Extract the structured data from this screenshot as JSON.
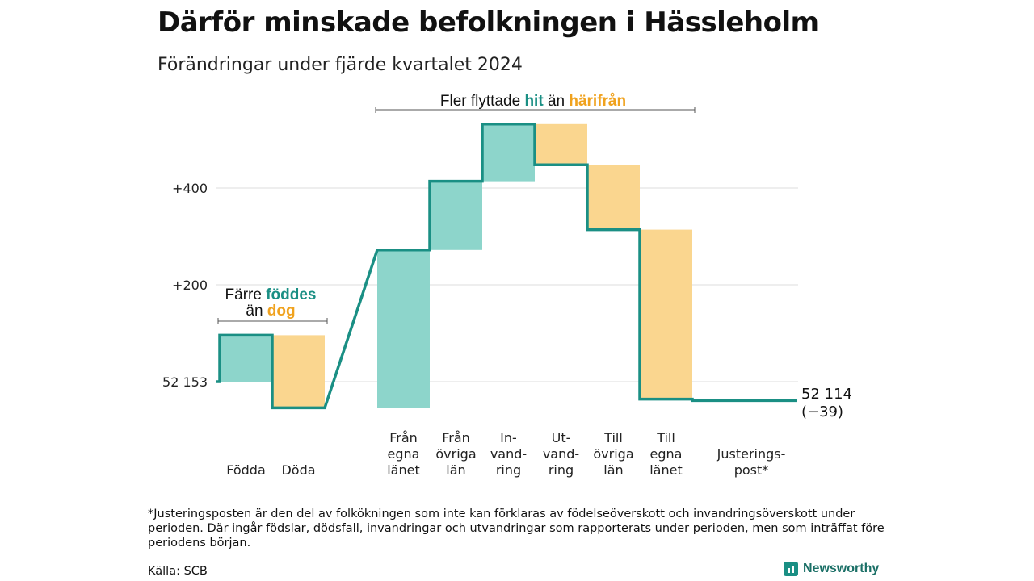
{
  "header": {
    "title": "Därför minskade befolkningen i Hässleholm",
    "subtitle": "Förändringar under fjärde kvartalet 2024"
  },
  "colors": {
    "increase_fill": "#8dd5cb",
    "decrease_fill": "#fad68f",
    "line": "#1a8f84",
    "hit_text": "#1a8f84",
    "dog_text": "#f0a21e",
    "grid": "#dddddd"
  },
  "annotations": {
    "top": {
      "prefix": "Fler flyttade",
      "hit": "hit",
      "mid": "än",
      "away": "härifrån"
    },
    "left": {
      "line1_prefix": "Färre",
      "line1_hit": "föddes",
      "line2_prefix": "än",
      "line2_dog": "dog"
    }
  },
  "end_label": {
    "value": "52 114",
    "change": "(−39)"
  },
  "chart_data": {
    "type": "waterfall",
    "start_value": 52153,
    "start_label": "52 153",
    "end_value": 52114,
    "y_ticks": [
      {
        "value": 200,
        "label": "+200"
      },
      {
        "value": 400,
        "label": "+400"
      }
    ],
    "grid": true,
    "steps": [
      {
        "label": [
          "Födda"
        ],
        "change": 96
      },
      {
        "label": [
          "Döda"
        ],
        "change": -150
      },
      {
        "label": [
          "Från",
          "egna",
          "länet"
        ],
        "change": 326
      },
      {
        "label": [
          "Från",
          "övriga",
          "län"
        ],
        "change": 142
      },
      {
        "label": [
          "In-",
          "vand-",
          "ring"
        ],
        "change": 118
      },
      {
        "label": [
          "Ut-",
          "vand-",
          "ring"
        ],
        "change": -84
      },
      {
        "label": [
          "Till",
          "övriga",
          "län"
        ],
        "change": -134
      },
      {
        "label": [
          "Till",
          "egna",
          "länet"
        ],
        "change": -350
      },
      {
        "label": [
          "Justerings-",
          "post*"
        ],
        "change": -3
      }
    ]
  },
  "footnote": "*Justeringsposten är den del av folkökningen som inte kan förklaras av födelseöverskott och invandringsöverskott under perioden. Där ingår födslar, dödsfall, invandringar och utvandringar som rapporterats under perioden, men som inträffat före periodens början.",
  "source": "Källa: SCB",
  "brand": "Newsworthy"
}
